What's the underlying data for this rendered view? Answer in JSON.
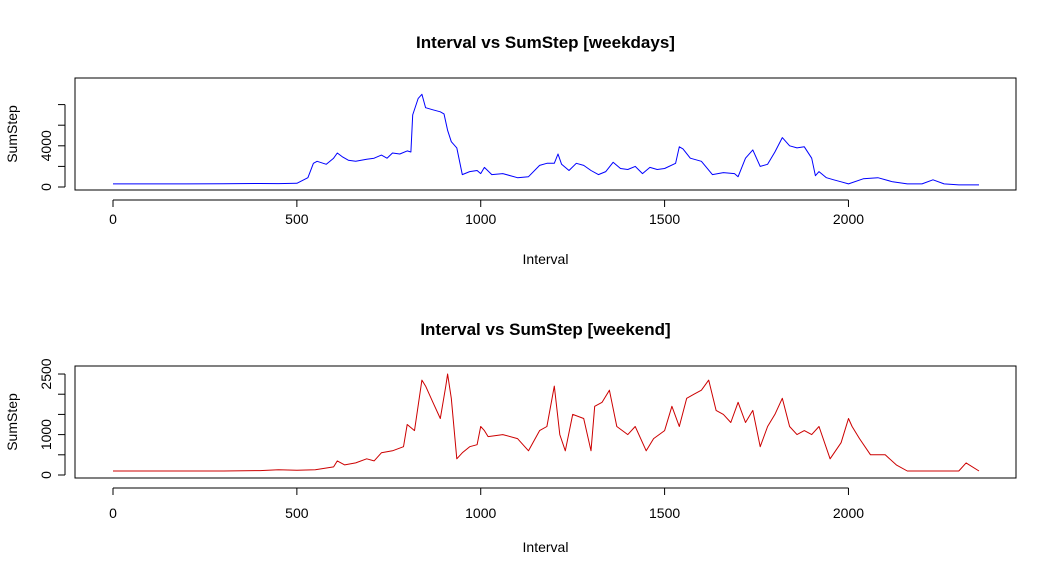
{
  "chart_data": [
    {
      "type": "line",
      "title": "Interval vs SumStep [weekdays]",
      "xlabel": "Interval",
      "ylabel": "SumStep",
      "xlim": [
        0,
        2355
      ],
      "ylim": [
        0,
        10000
      ],
      "xticks": [
        0,
        500,
        1000,
        1500,
        2000
      ],
      "yticks": [
        0,
        4000
      ],
      "ytick_marks": [
        0,
        2000,
        4000,
        6000,
        8000
      ],
      "grid": false,
      "color": "#0000ff",
      "x": [
        0,
        100,
        200,
        300,
        400,
        450,
        500,
        530,
        545,
        555,
        580,
        600,
        610,
        625,
        640,
        660,
        690,
        710,
        730,
        745,
        760,
        780,
        800,
        810,
        815,
        830,
        840,
        850,
        870,
        890,
        900,
        910,
        920,
        935,
        950,
        970,
        990,
        1000,
        1010,
        1030,
        1060,
        1100,
        1130,
        1160,
        1180,
        1200,
        1210,
        1220,
        1240,
        1260,
        1280,
        1300,
        1320,
        1340,
        1360,
        1380,
        1400,
        1420,
        1440,
        1460,
        1480,
        1500,
        1530,
        1540,
        1550,
        1570,
        1600,
        1630,
        1660,
        1690,
        1700,
        1720,
        1740,
        1760,
        1780,
        1800,
        1820,
        1840,
        1860,
        1880,
        1900,
        1910,
        1920,
        1940,
        1960,
        1980,
        2000,
        2040,
        2080,
        2120,
        2160,
        2200,
        2230,
        2260,
        2300,
        2355
      ],
      "y": [
        300,
        300,
        300,
        320,
        340,
        330,
        360,
        900,
        2300,
        2500,
        2200,
        2800,
        3300,
        2900,
        2600,
        2500,
        2700,
        2800,
        3100,
        2800,
        3300,
        3200,
        3500,
        3400,
        7000,
        8600,
        9000,
        7700,
        7500,
        7300,
        7100,
        5500,
        4400,
        3800,
        1200,
        1500,
        1600,
        1300,
        1900,
        1200,
        1300,
        900,
        1000,
        2100,
        2300,
        2300,
        3200,
        2200,
        1600,
        2300,
        2100,
        1600,
        1200,
        1500,
        2400,
        1800,
        1700,
        2000,
        1300,
        1900,
        1700,
        1800,
        2300,
        3900,
        3700,
        2800,
        2500,
        1200,
        1400,
        1300,
        1000,
        2800,
        3600,
        2000,
        2200,
        3400,
        4800,
        4000,
        3800,
        3900,
        2800,
        1100,
        1500,
        900,
        700,
        500,
        300,
        800,
        900,
        500,
        300,
        300,
        700,
        300,
        200,
        200
      ]
    },
    {
      "type": "line",
      "title": "Interval vs SumStep [weekend]",
      "xlabel": "Interval",
      "ylabel": "SumStep",
      "xlim": [
        0,
        2355
      ],
      "ylim": [
        0,
        2550
      ],
      "xticks": [
        0,
        500,
        1000,
        1500,
        2000
      ],
      "yticks": [
        0,
        1000,
        2500
      ],
      "ytick_marks": [
        0,
        500,
        1000,
        1500,
        2000,
        2500
      ],
      "grid": false,
      "color": "#cc0000",
      "x": [
        0,
        100,
        200,
        300,
        400,
        450,
        500,
        550,
        600,
        610,
        630,
        660,
        690,
        710,
        730,
        760,
        790,
        800,
        820,
        840,
        850,
        870,
        890,
        905,
        910,
        920,
        935,
        950,
        970,
        990,
        1000,
        1010,
        1020,
        1060,
        1100,
        1130,
        1160,
        1180,
        1200,
        1215,
        1230,
        1250,
        1280,
        1300,
        1310,
        1330,
        1350,
        1370,
        1400,
        1420,
        1450,
        1470,
        1500,
        1520,
        1540,
        1560,
        1580,
        1600,
        1620,
        1640,
        1660,
        1680,
        1700,
        1720,
        1740,
        1760,
        1780,
        1800,
        1820,
        1840,
        1860,
        1880,
        1900,
        1920,
        1950,
        1980,
        2000,
        2010,
        2030,
        2060,
        2100,
        2130,
        2160,
        2200,
        2250,
        2300,
        2320,
        2355
      ],
      "y": [
        100,
        100,
        100,
        100,
        110,
        130,
        120,
        130,
        200,
        350,
        250,
        300,
        400,
        350,
        550,
        600,
        700,
        1250,
        1100,
        2350,
        2200,
        1800,
        1400,
        2200,
        2500,
        1900,
        400,
        550,
        700,
        750,
        1200,
        1100,
        950,
        1000,
        900,
        600,
        1100,
        1200,
        2200,
        1000,
        600,
        1500,
        1400,
        600,
        1700,
        1800,
        2100,
        1200,
        1000,
        1200,
        600,
        900,
        1100,
        1700,
        1200,
        1900,
        2000,
        2100,
        2350,
        1600,
        1500,
        1300,
        1800,
        1300,
        1600,
        700,
        1200,
        1500,
        1900,
        1200,
        1000,
        1100,
        1000,
        1200,
        400,
        800,
        1400,
        1200,
        900,
        500,
        500,
        250,
        100,
        100,
        100,
        100,
        300,
        100
      ]
    }
  ]
}
